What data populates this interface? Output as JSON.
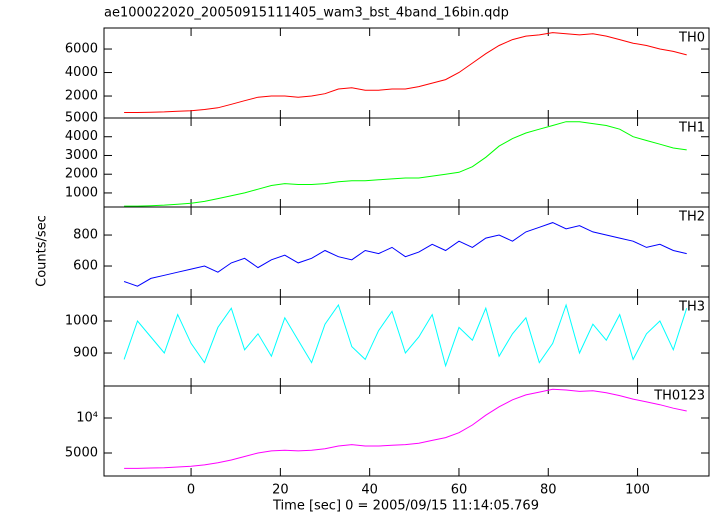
{
  "chart_data": [
    {
      "type": "line",
      "title": "ae100022020_20050915111405_wam3_bst_4band_16bin.qdp",
      "x": [
        -15,
        -12,
        -9,
        -6,
        -3,
        0,
        3,
        6,
        9,
        12,
        15,
        18,
        21,
        24,
        27,
        30,
        33,
        36,
        39,
        42,
        45,
        48,
        51,
        54,
        57,
        60,
        63,
        66,
        69,
        72,
        75,
        78,
        81,
        84,
        87,
        90,
        93,
        96,
        99,
        102,
        105,
        108,
        111
      ],
      "series": [
        {
          "name": "TH0",
          "color": "#ff0000",
          "values": [
            600,
            600,
            620,
            650,
            700,
            750,
            850,
            1000,
            1300,
            1600,
            1900,
            2000,
            2000,
            1900,
            2000,
            2200,
            2600,
            2700,
            2500,
            2500,
            2600,
            2600,
            2800,
            3100,
            3400,
            4000,
            4800,
            5600,
            6300,
            6800,
            7100,
            7200,
            7400,
            7300,
            7200,
            7300,
            7100,
            6800,
            6500,
            6300,
            6000,
            5800,
            5500
          ]
        }
      ],
      "xlim": [
        -19.5,
        116
      ],
      "ylim": [
        130,
        7790
      ],
      "yticks": [
        2000,
        4000,
        6000
      ]
    },
    {
      "type": "line",
      "x": [
        -15,
        -12,
        -9,
        -6,
        -3,
        0,
        3,
        6,
        9,
        12,
        15,
        18,
        21,
        24,
        27,
        30,
        33,
        36,
        39,
        42,
        45,
        48,
        51,
        54,
        57,
        60,
        63,
        66,
        69,
        72,
        75,
        78,
        81,
        84,
        87,
        90,
        93,
        96,
        99,
        102,
        105,
        108,
        111
      ],
      "series": [
        {
          "name": "TH1",
          "color": "#00ff00",
          "values": [
            300,
            300,
            320,
            350,
            400,
            450,
            550,
            700,
            850,
            1000,
            1200,
            1400,
            1500,
            1450,
            1450,
            1500,
            1600,
            1650,
            1650,
            1700,
            1750,
            1800,
            1800,
            1900,
            2000,
            2100,
            2400,
            2900,
            3500,
            3900,
            4200,
            4400,
            4600,
            4800,
            4800,
            4700,
            4600,
            4400,
            4000,
            3800,
            3600,
            3400,
            3300
          ]
        }
      ],
      "xlim": [
        -19.5,
        116
      ],
      "ylim": [
        250,
        5000
      ],
      "yticks": [
        1000,
        2000,
        3000,
        4000,
        5000
      ]
    },
    {
      "type": "line",
      "ylabel": "Counts/sec",
      "x": [
        -15,
        -12,
        -9,
        -6,
        -3,
        0,
        3,
        6,
        9,
        12,
        15,
        18,
        21,
        24,
        27,
        30,
        33,
        36,
        39,
        42,
        45,
        48,
        51,
        54,
        57,
        60,
        63,
        66,
        69,
        72,
        75,
        78,
        81,
        84,
        87,
        90,
        93,
        96,
        99,
        102,
        105,
        108,
        111
      ],
      "series": [
        {
          "name": "TH2",
          "color": "#0000ff",
          "values": [
            500,
            470,
            520,
            540,
            560,
            580,
            600,
            560,
            620,
            650,
            590,
            640,
            670,
            620,
            650,
            700,
            660,
            640,
            700,
            680,
            720,
            660,
            690,
            740,
            700,
            760,
            720,
            780,
            800,
            760,
            820,
            850,
            880,
            840,
            860,
            820,
            800,
            780,
            760,
            720,
            740,
            700,
            680
          ]
        }
      ],
      "xlim": [
        -19.5,
        116
      ],
      "ylim": [
        400,
        981
      ],
      "yticks": [
        600,
        800
      ]
    },
    {
      "type": "line",
      "x": [
        -15,
        -12,
        -9,
        -6,
        -3,
        0,
        3,
        6,
        9,
        12,
        15,
        18,
        21,
        24,
        27,
        30,
        33,
        36,
        39,
        42,
        45,
        48,
        51,
        54,
        57,
        60,
        63,
        66,
        69,
        72,
        75,
        78,
        81,
        84,
        87,
        90,
        93,
        96,
        99,
        102,
        105,
        108,
        111
      ],
      "series": [
        {
          "name": "TH3",
          "color": "#00ffff",
          "values": [
            880,
            1000,
            950,
            900,
            1020,
            930,
            870,
            980,
            1040,
            910,
            960,
            890,
            1010,
            940,
            870,
            990,
            1050,
            920,
            880,
            970,
            1030,
            900,
            950,
            1020,
            860,
            980,
            940,
            1040,
            890,
            960,
            1010,
            870,
            930,
            1050,
            900,
            990,
            940,
            1020,
            880,
            960,
            1000,
            910,
            1040
          ]
        }
      ],
      "xlim": [
        -19.5,
        116
      ],
      "ylim": [
        797,
        1075
      ],
      "yticks": [
        900,
        1000
      ]
    },
    {
      "type": "line",
      "xlabel": "Time [sec] 0 = 2005/09/15 11:14:05.769",
      "x": [
        -15,
        -12,
        -9,
        -6,
        -3,
        0,
        3,
        6,
        9,
        12,
        15,
        18,
        21,
        24,
        27,
        30,
        33,
        36,
        39,
        42,
        45,
        48,
        51,
        54,
        57,
        60,
        63,
        66,
        69,
        72,
        75,
        78,
        81,
        84,
        87,
        90,
        93,
        96,
        99,
        102,
        105,
        108,
        111
      ],
      "series": [
        {
          "name": "TH0123",
          "color": "#ff00ff",
          "values": [
            2800,
            2800,
            2850,
            2900,
            3000,
            3100,
            3300,
            3600,
            4000,
            4500,
            5000,
            5300,
            5400,
            5300,
            5400,
            5600,
            6000,
            6200,
            6000,
            6000,
            6100,
            6200,
            6400,
            6800,
            7200,
            7900,
            9000,
            10400,
            11600,
            12600,
            13300,
            13700,
            14100,
            14000,
            13800,
            13900,
            13600,
            13200,
            12700,
            12300,
            11900,
            11400,
            11000
          ]
        }
      ],
      "xlim": [
        -19.5,
        116
      ],
      "ylim": [
        1714,
        14570
      ],
      "yticks": [
        5000,
        {
          "value": 10000,
          "label": "10⁴"
        }
      ],
      "xticks": [
        0,
        20,
        40,
        60,
        80,
        100
      ]
    }
  ]
}
